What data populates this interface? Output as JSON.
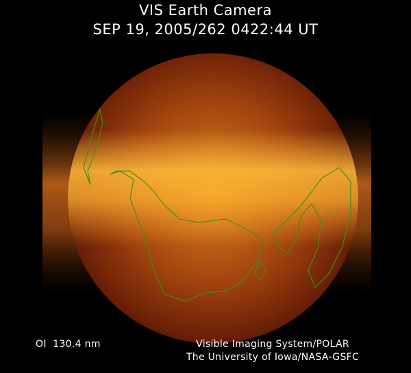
{
  "header": {
    "title": "VIS Earth Camera",
    "timestamp": "SEP 19, 2005/262 0422:44 UT"
  },
  "footer": {
    "wavelength": "OI  130.4 nm",
    "credit": [
      "Visible Imaging System/POLAR",
      "The University of Iowa/NASA-GSFC"
    ]
  }
}
